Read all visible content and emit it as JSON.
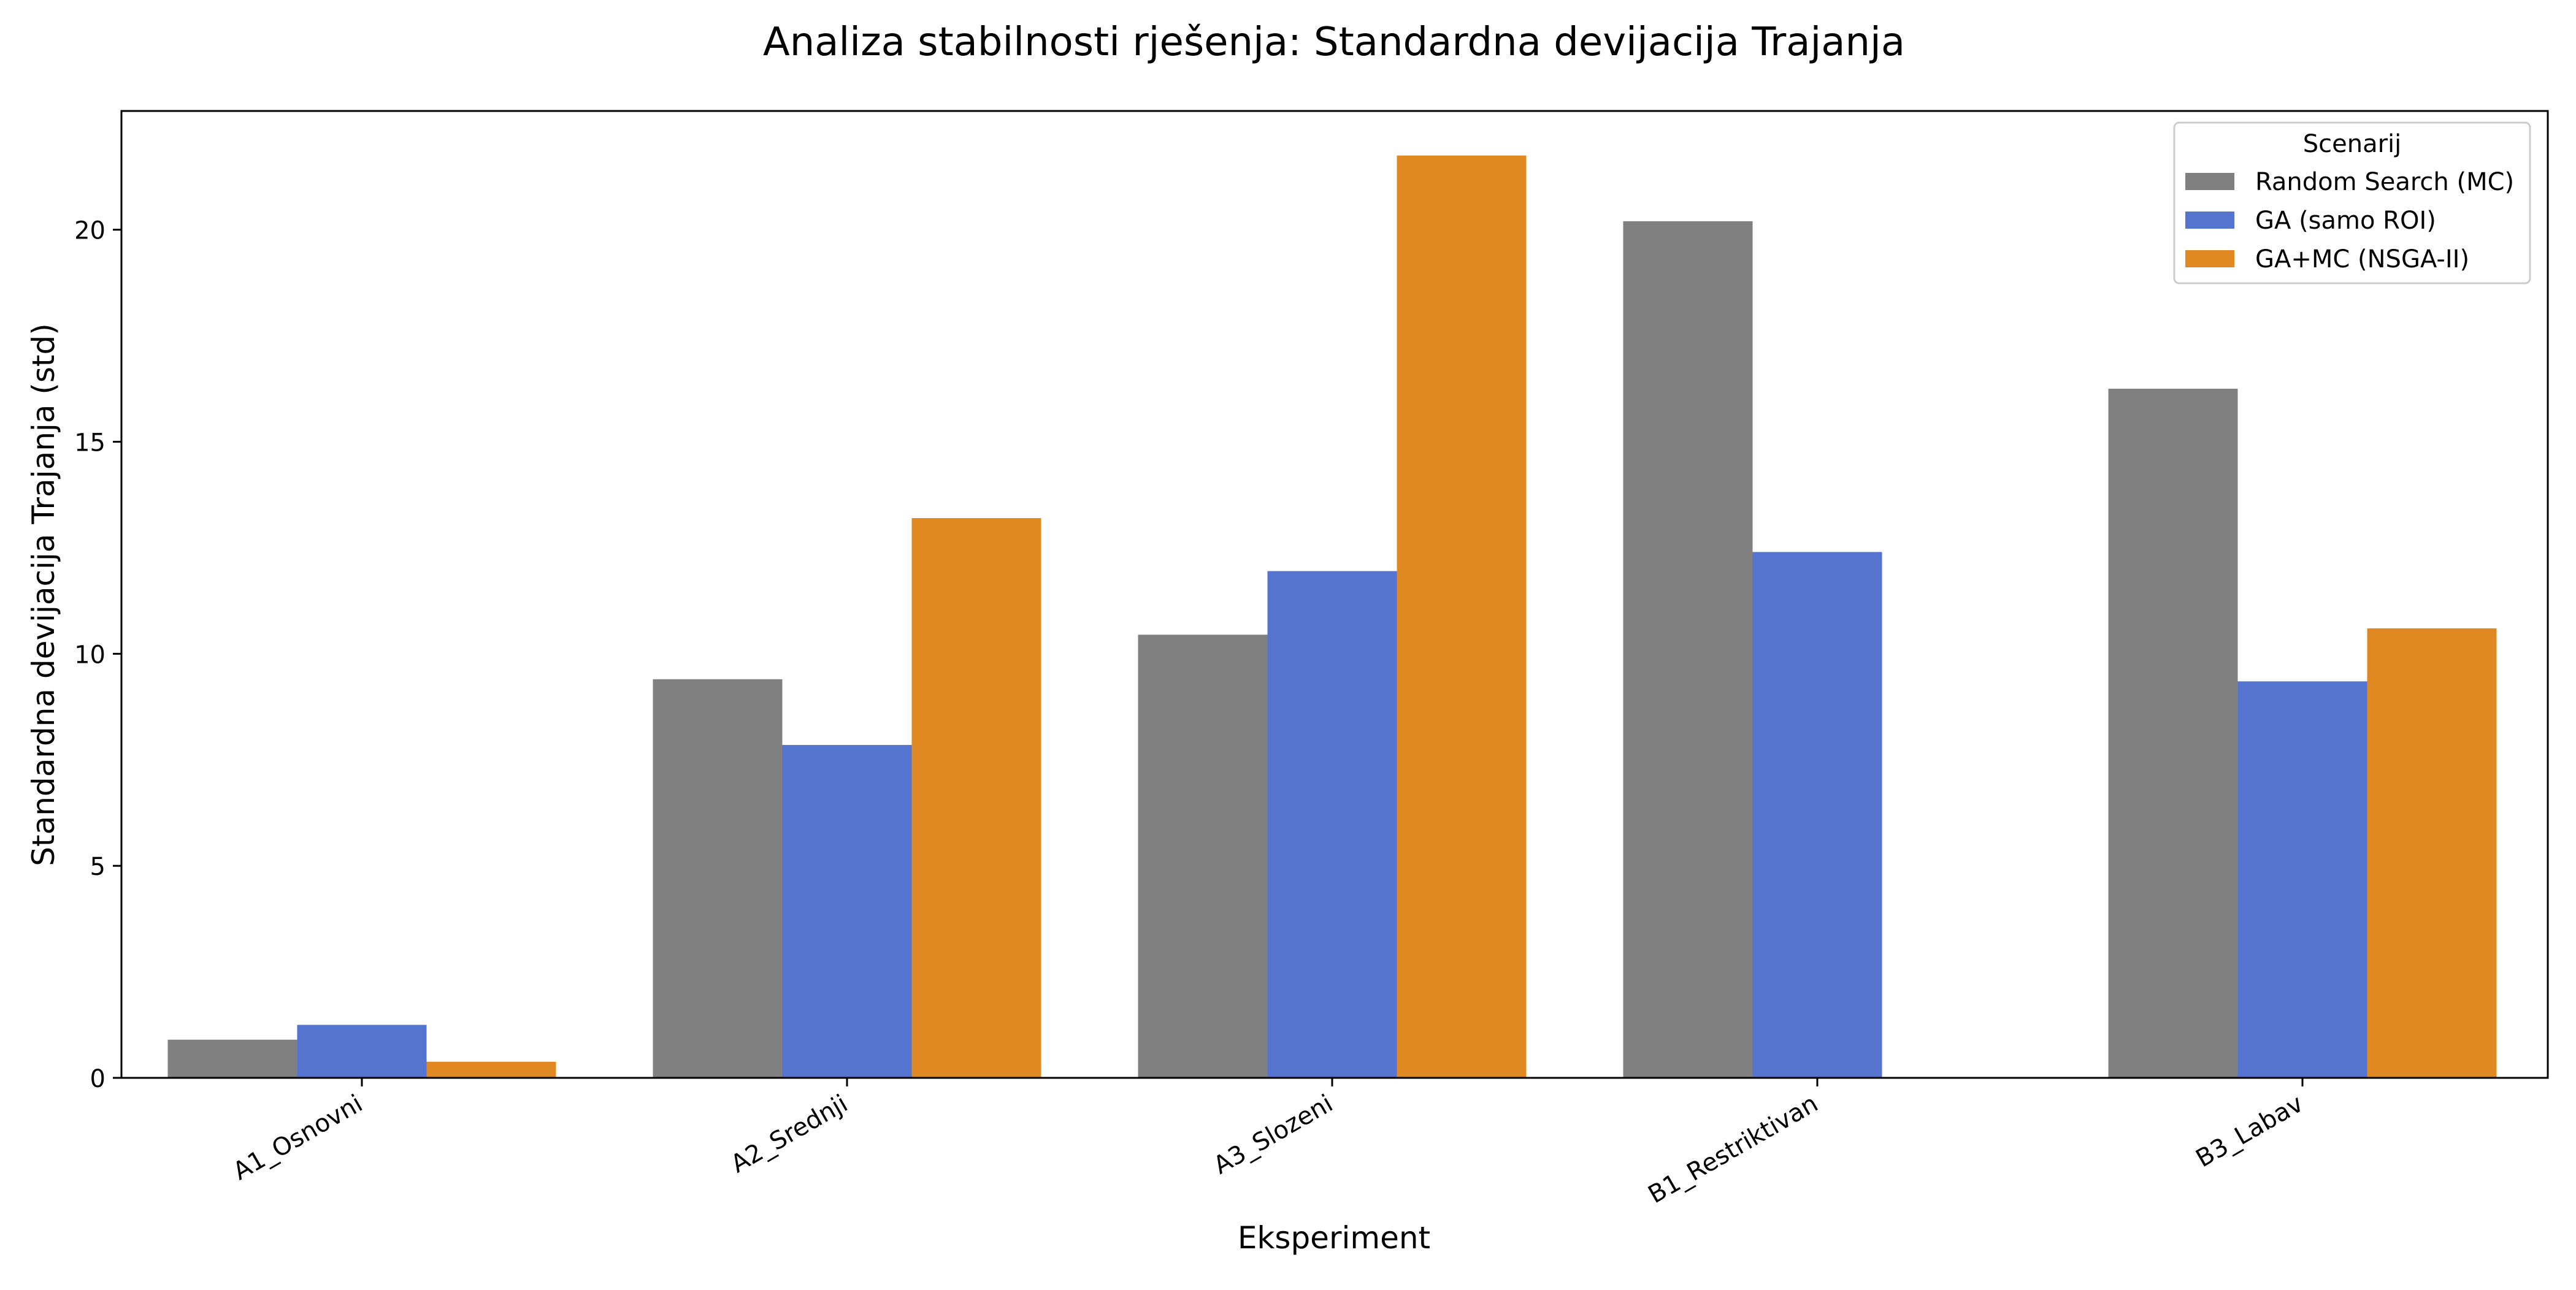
{
  "chart_data": {
    "type": "bar",
    "title": "Analiza stabilnosti rješenja: Standardna devijacija Trajanja",
    "xlabel": "Eksperiment",
    "ylabel": "Standardna devijacija Trajanja (std)",
    "ylim": [
      0,
      22.8
    ],
    "yticks": [
      0,
      5,
      10,
      15,
      20
    ],
    "grid": false,
    "legend": {
      "title": "Scenarij",
      "position": "top-right"
    },
    "categories": [
      "A1_Osnovni",
      "A2_Srednji",
      "A3_Slozeni",
      "B1_Restriktivan",
      "B3_Labav"
    ],
    "series": [
      {
        "name": "Random Search (MC)",
        "color": "#808080",
        "values": [
          0.9,
          9.4,
          10.45,
          20.2,
          16.25
        ]
      },
      {
        "name": "GA (samo ROI)",
        "color": "#5574cf",
        "values": [
          1.25,
          7.85,
          11.95,
          12.4,
          9.35
        ]
      },
      {
        "name": "GA+MC (NSGA-II)",
        "color": "#e08822",
        "values": [
          0.38,
          13.2,
          21.75,
          null,
          10.6
        ]
      }
    ]
  }
}
